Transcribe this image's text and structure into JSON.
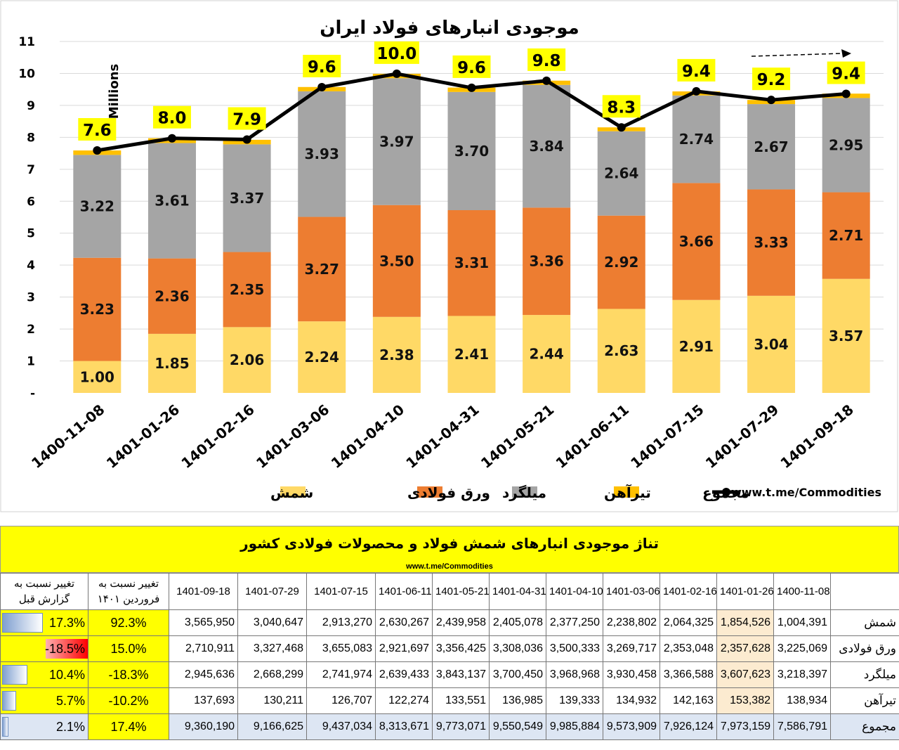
{
  "chart_data": {
    "type": "stacked-bar-line",
    "title": "موجودی انبارهای فولاد ایران",
    "units_label": "Millions",
    "source": "www.t.me/Commodities",
    "ylim": [
      0,
      11
    ],
    "y_ticks": [
      "-",
      "1",
      "2",
      "3",
      "4",
      "5",
      "6",
      "7",
      "8",
      "9",
      "10",
      "11"
    ],
    "grid": true,
    "legend_position": "bottom",
    "categories": [
      "1400-11-08",
      "1401-01-26",
      "1401-02-16",
      "1401-03-06",
      "1401-04-10",
      "1401-04-31",
      "1401-05-21",
      "1401-06-11",
      "1401-07-15",
      "1401-07-29",
      "1401-09-18"
    ],
    "series": [
      {
        "name": "شمش",
        "color": "#ffd966",
        "values": [
          1.0,
          1.85,
          2.06,
          2.24,
          2.38,
          2.41,
          2.44,
          2.63,
          2.91,
          3.04,
          3.57
        ],
        "labels": [
          "1.00",
          "1.85",
          "2.06",
          "2.24",
          "2.38",
          "2.41",
          "2.44",
          "2.63",
          "2.91",
          "3.04",
          "3.57"
        ]
      },
      {
        "name": "ورق فولادی",
        "color": "#ed7d31",
        "values": [
          3.23,
          2.36,
          2.35,
          3.27,
          3.5,
          3.31,
          3.36,
          2.92,
          3.66,
          3.33,
          2.71
        ],
        "labels": [
          "3.23",
          "2.36",
          "2.35",
          "3.27",
          "3.50",
          "3.31",
          "3.36",
          "2.92",
          "3.66",
          "3.33",
          "2.71"
        ]
      },
      {
        "name": "میلگرد",
        "color": "#a5a5a5",
        "values": [
          3.22,
          3.61,
          3.37,
          3.93,
          3.97,
          3.7,
          3.84,
          2.64,
          2.74,
          2.67,
          2.95
        ],
        "labels": [
          "3.22",
          "3.61",
          "3.37",
          "3.93",
          "3.97",
          "3.70",
          "3.84",
          "2.64",
          "2.74",
          "2.67",
          "2.95"
        ]
      },
      {
        "name": "تیرآهن",
        "color": "#ffc000",
        "values": [
          0.139,
          0.153,
          0.142,
          0.135,
          0.139,
          0.137,
          0.134,
          0.122,
          0.127,
          0.13,
          0.138
        ]
      },
      {
        "name": "مجموع",
        "type": "line",
        "color": "#000000",
        "values": [
          7.59,
          7.97,
          7.93,
          9.57,
          9.99,
          9.55,
          9.77,
          8.31,
          9.44,
          9.17,
          9.36
        ],
        "labels": [
          "7.6",
          "8.0",
          "7.9",
          "9.6",
          "10.0",
          "9.6",
          "9.8",
          "8.3",
          "9.4",
          "9.2",
          "9.4"
        ]
      }
    ]
  },
  "table": {
    "title": "تناژ موجودی انبارهای شمش فولاد و محصولات فولادی کشور",
    "url": "www.t.me/Commodities",
    "header_change_prev": "تغییر نسبت به گزارش قبل",
    "header_change_farvardin": "تغییر نسبت به فروردین ۱۴۰۱",
    "dates": [
      "1401-09-18",
      "1401-07-29",
      "1401-07-15",
      "1401-06-11",
      "1401-05-21",
      "1401-04-31",
      "1401-04-10",
      "1401-03-06",
      "1401-02-16",
      "1401-01-26",
      "1400-11-08"
    ],
    "rows": [
      {
        "name": "شمش",
        "chg_prev": "17.3%",
        "chg_prev_val": 17.3,
        "chg_farv": "92.3%",
        "values": [
          "3,565,950",
          "3,040,647",
          "2,913,270",
          "2,630,267",
          "2,439,958",
          "2,405,078",
          "2,377,250",
          "2,238,802",
          "2,064,325",
          "1,854,526",
          "1,004,391"
        ]
      },
      {
        "name": "ورق فولادی",
        "chg_prev": "-18.5%",
        "chg_prev_val": -18.5,
        "chg_farv": "15.0%",
        "values": [
          "2,710,911",
          "3,327,468",
          "3,655,083",
          "2,921,697",
          "3,356,425",
          "3,308,036",
          "3,500,333",
          "3,269,717",
          "2,353,048",
          "2,357,628",
          "3,225,069"
        ]
      },
      {
        "name": "میلگرد",
        "chg_prev": "10.4%",
        "chg_prev_val": 10.4,
        "chg_farv": "-18.3%",
        "values": [
          "2,945,636",
          "2,668,299",
          "2,741,974",
          "2,639,433",
          "3,843,137",
          "3,700,450",
          "3,968,968",
          "3,930,458",
          "3,366,588",
          "3,607,623",
          "3,218,397"
        ]
      },
      {
        "name": "تیرآهن",
        "chg_prev": "5.7%",
        "chg_prev_val": 5.7,
        "chg_farv": "-10.2%",
        "values": [
          "137,693",
          "130,211",
          "126,707",
          "122,274",
          "133,551",
          "136,985",
          "139,333",
          "134,932",
          "142,163",
          "153,382",
          "138,934"
        ]
      },
      {
        "name": "مجموع",
        "chg_prev": "2.1%",
        "chg_prev_val": 2.1,
        "chg_farv": "17.4%",
        "values": [
          "9,360,190",
          "9,166,625",
          "9,437,034",
          "8,313,671",
          "9,773,071",
          "9,550,549",
          "9,985,884",
          "9,573,909",
          "7,926,124",
          "7,973,159",
          "7,586,791"
        ]
      }
    ]
  }
}
